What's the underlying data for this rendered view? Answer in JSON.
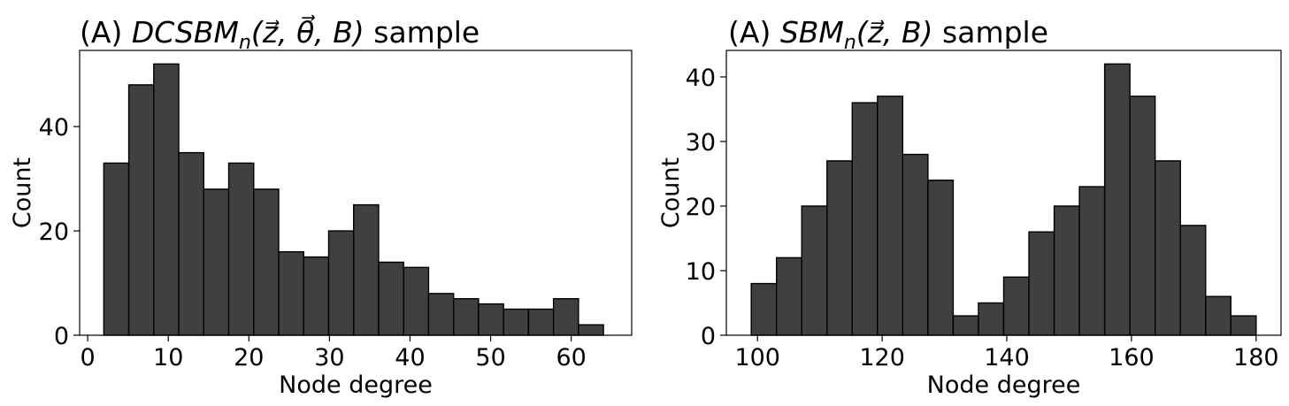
{
  "chart_data": [
    {
      "type": "bar",
      "title_prefix": "(A)",
      "title_math": "DCSBM",
      "title_sub": "n",
      "title_args": "(z⃗, θ⃗, B)",
      "title_suffix": "sample",
      "xlabel": "Node degree",
      "ylabel": "Count",
      "xlim": [
        -1,
        67.5
      ],
      "ylim": [
        0,
        54.6
      ],
      "xticks": [
        0,
        10,
        20,
        30,
        40,
        50,
        60
      ],
      "yticks": [
        0,
        20,
        40
      ],
      "bin_start": 2,
      "bin_width": 3.1,
      "values": [
        33,
        48,
        52,
        35,
        28,
        33,
        28,
        16,
        15,
        20,
        25,
        14,
        13,
        8,
        7,
        6,
        5,
        5,
        7,
        2
      ],
      "bar_color": "#404040"
    },
    {
      "type": "bar",
      "title_prefix": "(A)",
      "title_math": "SBM",
      "title_sub": "n",
      "title_args": "(z⃗, B)",
      "title_suffix": "sample",
      "xlabel": "Node degree",
      "ylabel": "Count",
      "xlim": [
        95,
        184
      ],
      "ylim": [
        0,
        44.1
      ],
      "xticks": [
        100,
        120,
        140,
        160,
        180
      ],
      "yticks": [
        0,
        10,
        20,
        30,
        40
      ],
      "bin_start": 99,
      "bin_width": 4.05,
      "values": [
        8,
        12,
        20,
        27,
        36,
        37,
        28,
        24,
        3,
        5,
        9,
        16,
        20,
        23,
        42,
        37,
        27,
        17,
        6,
        3
      ],
      "bar_color": "#404040"
    }
  ]
}
